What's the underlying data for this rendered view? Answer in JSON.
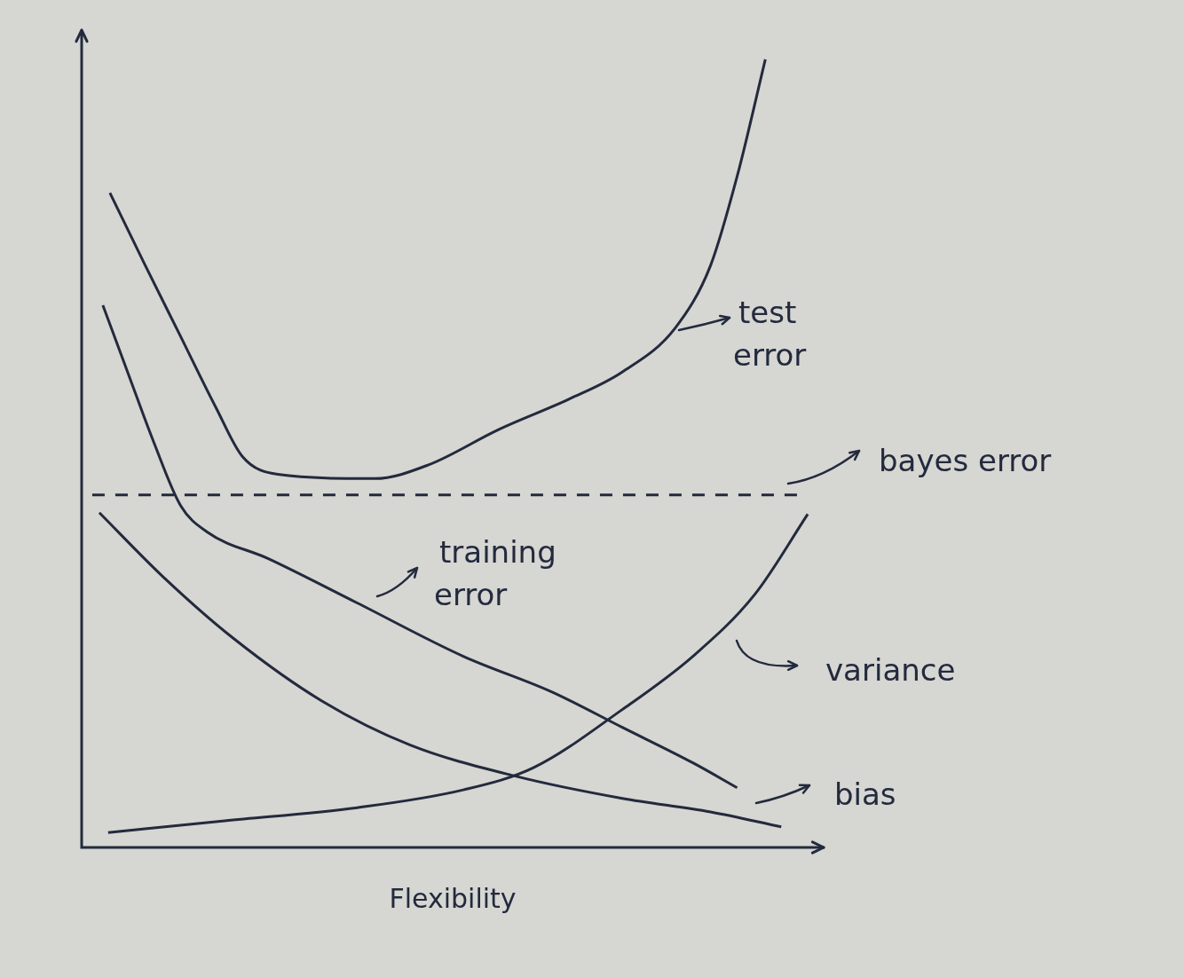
{
  "chart_data": {
    "type": "line",
    "x_label": "Flexibility",
    "xlim": [
      0,
      10.5
    ],
    "ylim": [
      0,
      11.5
    ],
    "tick_labels": false,
    "grid": false,
    "series": [
      {
        "name": "test error",
        "color": "#232a3d",
        "line_style": "solid",
        "x": [
          0.4,
          0.9,
          1.4,
          1.9,
          2.275,
          2.775,
          4.15,
          4.9,
          5.9,
          6.9,
          7.65,
          8.4,
          8.9,
          9.275,
          9.675
        ],
        "values": [
          9.21,
          8.19,
          7.19,
          6.19,
          5.5,
          5.25,
          5.19,
          5.38,
          5.88,
          6.31,
          6.69,
          7.31,
          8.19,
          9.44,
          11.09
        ]
      },
      {
        "name": "bayes error",
        "color": "#232a3d",
        "line_style": "dashed",
        "x": [
          0.15,
          10.2
        ],
        "values": [
          4.96,
          4.96
        ]
      },
      {
        "name": "training error",
        "color": "#232a3d",
        "line_style": "solid",
        "x": [
          0.3,
          0.65,
          1.025,
          1.4,
          1.775,
          2.65,
          3.9,
          5.4,
          6.65,
          7.65,
          8.65,
          9.275
        ],
        "values": [
          7.63,
          6.69,
          5.69,
          4.81,
          4.44,
          4.06,
          3.44,
          2.69,
          2.19,
          1.69,
          1.19,
          0.84
        ]
      },
      {
        "name": "variance",
        "color": "#232a3d",
        "line_style": "solid",
        "x": [
          0.375,
          2.025,
          3.9,
          5.4,
          6.4,
          7.65,
          8.65,
          9.525,
          10.275
        ],
        "values": [
          0.21,
          0.375,
          0.56,
          0.81,
          1.125,
          1.94,
          2.69,
          3.56,
          4.69
        ]
      },
      {
        "name": "bias",
        "color": "#232a3d",
        "line_style": "solid",
        "x": [
          0.25,
          1.15,
          2.15,
          3.4,
          4.65,
          6.15,
          7.65,
          8.9,
          9.9
        ],
        "values": [
          4.71,
          3.81,
          2.94,
          2.06,
          1.44,
          1.0,
          0.69,
          0.5,
          0.29
        ]
      }
    ]
  }
}
